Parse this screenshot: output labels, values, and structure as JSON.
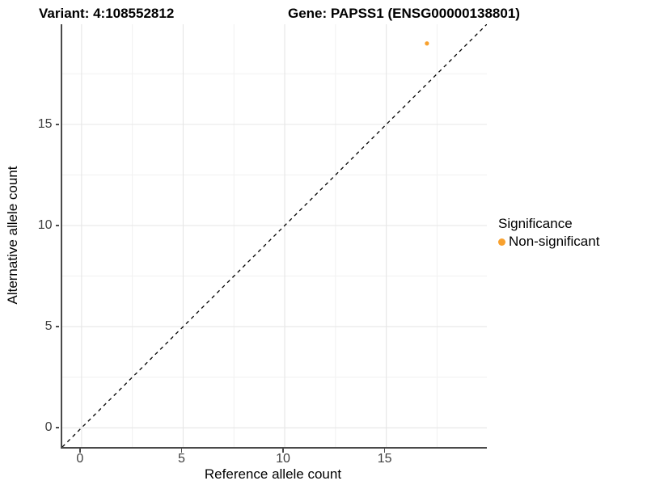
{
  "header": {
    "variant_title": "Variant: 4:108552812",
    "gene_title": "Gene: PAPSS1 (ENSG00000138801)"
  },
  "axes": {
    "x_label": "Reference allele count",
    "y_label": "Alternative allele count"
  },
  "legend": {
    "title": "Significance",
    "items": [
      {
        "label": "Non-significant",
        "color": "#F8A12E"
      }
    ]
  },
  "colors": {
    "background": "#FFFFFF",
    "axis_line": "#4A4A4A",
    "tick_label": "#404040",
    "grid_major": "#E6E6E6",
    "grid_minor": "#F1F1F1",
    "point": "#F8A12E",
    "reference_line": "#000000"
  },
  "chart_data": {
    "type": "scatter",
    "title": "Variant: 4:108552812 — Gene: PAPSS1 (ENSG00000138801)",
    "xlabel": "Reference allele count",
    "ylabel": "Alternative allele count",
    "xlim": [
      -0.95,
      19.95
    ],
    "ylim": [
      -0.95,
      19.95
    ],
    "xticks": [
      0,
      5,
      10,
      15
    ],
    "yticks": [
      0,
      5,
      10,
      15
    ],
    "minor_ticks": [
      2.5,
      7.5,
      12.5,
      17.5
    ],
    "grid": "major+minor, light gray",
    "legend_position": "right",
    "legend_title": "Significance",
    "series": [
      {
        "name": "Non-significant",
        "color": "#F8A12E",
        "point_radius": 2.6,
        "points": [
          {
            "x": 17,
            "y": 19
          }
        ]
      }
    ],
    "reference_line": {
      "type": "identity y=x",
      "style": "dashed",
      "color": "#000000"
    }
  }
}
